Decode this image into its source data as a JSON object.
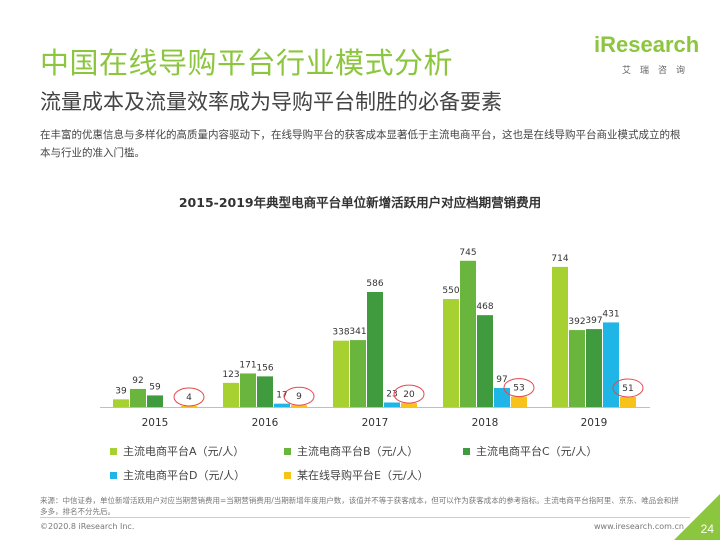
{
  "header": {
    "title": "中国在线导购平台行业模式分析",
    "subtitle": "流量成本及流量效率成为导购平台制胜的必备要素",
    "description": "在丰富的优惠信息与多样化的高质量内容驱动下，在线导购平台的获客成本显著低于主流电商平台，这也是在线导购平台商业模式成立的根本与行业的准入门槛。"
  },
  "logo": {
    "main": "iResearch",
    "sub": "艾瑞咨询"
  },
  "chart_data": {
    "type": "bar",
    "title": "2015-2019年典型电商平台单位新增活跃用户对应档期营销费用",
    "categories": [
      "2015",
      "2016",
      "2017",
      "2018",
      "2019"
    ],
    "series": [
      {
        "name": "主流电商平台A（元/人）",
        "color": "#a6d130",
        "values": [
          39,
          123,
          338,
          550,
          714
        ]
      },
      {
        "name": "主流电商平台B（元/人）",
        "color": "#6ab53e",
        "values": [
          92,
          171,
          341,
          745,
          392
        ]
      },
      {
        "name": "主流电商平台C（元/人）",
        "color": "#3f9b3d",
        "values": [
          59,
          156,
          586,
          468,
          397
        ]
      },
      {
        "name": "主流电商平台D（元/人）",
        "color": "#1fb5e6",
        "values": [
          null,
          17,
          23,
          97,
          431
        ]
      },
      {
        "name": "某在线导购平台E（元/人）",
        "color": "#f7c31b",
        "values": [
          4,
          9,
          20,
          53,
          51
        ]
      }
    ],
    "highlighted_series": "某在线导购平台E（元/人）",
    "highlight_color": "#e5484d",
    "ylim": [
      0,
      800
    ],
    "xlabel": "",
    "ylabel": ""
  },
  "source": "来源：中信证券，单位新增活跃用户对应当期营销费用=当期营销费用/当期新增年度用户数，该值并不等于获客成本，但可以作为获客成本的参考指标。主流电商平台指阿里、京东、唯品会和拼多多，排名不分先后。",
  "footer": {
    "copyright": "©2020.8 iResearch Inc.",
    "website": "www.iresearch.com.cn",
    "page": "24"
  }
}
